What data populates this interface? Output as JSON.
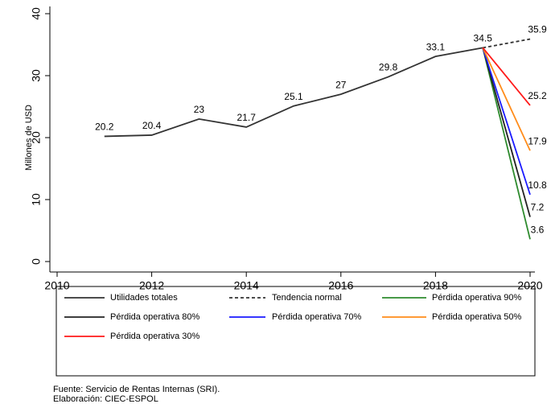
{
  "chart_data": {
    "type": "line",
    "y_label": "Millones de USD",
    "xlim": [
      2010,
      2020
    ],
    "xticks": [
      2010,
      2012,
      2014,
      2016,
      2018,
      2020
    ],
    "ylim": [
      0,
      40
    ],
    "yticks": [
      0,
      10,
      20,
      30,
      40
    ],
    "series": [
      {
        "name": "Utilidades totales",
        "color": "#333333",
        "dash": false,
        "x": [
          2011,
          2012,
          2013,
          2014,
          2015,
          2016,
          2017,
          2018,
          2019
        ],
        "values": [
          20.2,
          20.4,
          23,
          21.7,
          25.1,
          27,
          29.8,
          33.1,
          34.5
        ]
      },
      {
        "name": "Tendencia normal",
        "color": "#333333",
        "dash": true,
        "x": [
          2019,
          2020
        ],
        "values": [
          34.5,
          35.9
        ]
      },
      {
        "name": "Pérdida operativa 90%",
        "color": "#2e8b2e",
        "dash": false,
        "x": [
          2019,
          2020
        ],
        "values": [
          34.5,
          3.6
        ]
      },
      {
        "name": "Pérdida operativa 80%",
        "color": "#222222",
        "dash": false,
        "x": [
          2019,
          2020
        ],
        "values": [
          34.5,
          7.2
        ]
      },
      {
        "name": "Pérdida operativa 70%",
        "color": "#1a1aff",
        "dash": false,
        "x": [
          2019,
          2020
        ],
        "values": [
          34.5,
          10.8
        ]
      },
      {
        "name": "Pérdida operativa 50%",
        "color": "#ff8c1a",
        "dash": false,
        "x": [
          2019,
          2020
        ],
        "values": [
          34.5,
          17.9
        ]
      },
      {
        "name": "Pérdida operativa 30%",
        "color": "#ff1a1a",
        "dash": false,
        "x": [
          2019,
          2020
        ],
        "values": [
          34.5,
          25.2
        ]
      }
    ],
    "source": "Fuente: Servicio de Rentas Internas (SRI).",
    "credit": "Elaboración: CIEC-ESPOL"
  }
}
